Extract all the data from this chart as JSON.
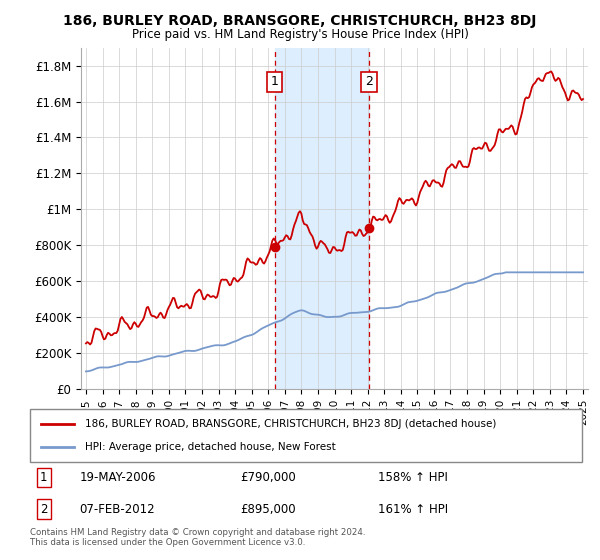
{
  "title": "186, BURLEY ROAD, BRANSGORE, CHRISTCHURCH, BH23 8DJ",
  "subtitle": "Price paid vs. HM Land Registry's House Price Index (HPI)",
  "ylabel_ticks": [
    "£0",
    "£200K",
    "£400K",
    "£600K",
    "£800K",
    "£1M",
    "£1.2M",
    "£1.4M",
    "£1.6M",
    "£1.8M"
  ],
  "ylim": [
    0,
    1900000
  ],
  "ytick_vals": [
    0,
    200000,
    400000,
    600000,
    800000,
    1000000,
    1200000,
    1400000,
    1600000,
    1800000
  ],
  "xlim_start": 1994.7,
  "xlim_end": 2025.3,
  "hpi_color": "#7799cc",
  "price_color": "#cc0000",
  "sale1_year": 2006.38,
  "sale1_price": 790000,
  "sale2_year": 2012.09,
  "sale2_price": 895000,
  "sale1_label": "19-MAY-2006",
  "sale1_amount": "£790,000",
  "sale1_hpi": "158% ↑ HPI",
  "sale2_label": "07-FEB-2012",
  "sale2_amount": "£895,000",
  "sale2_hpi": "161% ↑ HPI",
  "legend_red": "186, BURLEY ROAD, BRANSGORE, CHRISTCHURCH, BH23 8DJ (detached house)",
  "legend_blue": "HPI: Average price, detached house, New Forest",
  "footnote": "Contains HM Land Registry data © Crown copyright and database right 2024.\nThis data is licensed under the Open Government Licence v3.0.",
  "background_color": "#ffffff",
  "shaded_region_color": "#ddeeff"
}
